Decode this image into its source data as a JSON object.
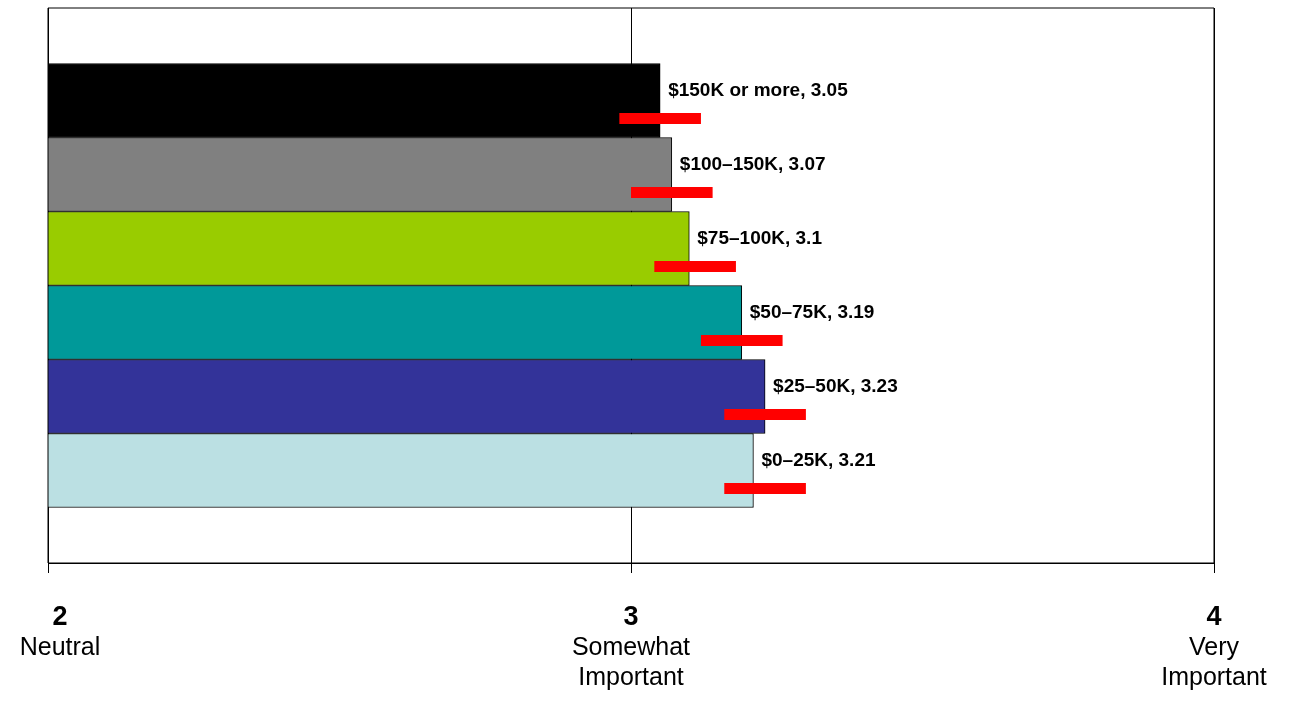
{
  "chart_data": {
    "type": "bar",
    "orientation": "horizontal",
    "categories": [
      "$150K or more",
      "$100–150K",
      "$75–100K",
      "$50–75K",
      "$25–50K",
      "$0–25K"
    ],
    "values": [
      3.05,
      3.07,
      3.1,
      3.19,
      3.23,
      3.21
    ],
    "colors": [
      "#000000",
      "#808080",
      "#99cc00",
      "#009999",
      "#333399",
      "#bbe0e3"
    ],
    "errors": [
      [
        2.98,
        3.12
      ],
      [
        3.0,
        3.14
      ],
      [
        3.04,
        3.18
      ],
      [
        3.12,
        3.26
      ],
      [
        3.16,
        3.3
      ],
      [
        3.16,
        3.3
      ]
    ],
    "xlim": [
      2,
      4
    ],
    "xticks": [
      {
        "value": 2,
        "label": "2\nNeutral"
      },
      {
        "value": 3,
        "label": "3\nSomewhat\nImportant"
      },
      {
        "value": 4,
        "label": "4\nVery\nImportant"
      }
    ],
    "value_labels": [
      ", 3.05",
      ", 3.07",
      ", 3.1",
      ", 3.19",
      ", 3.23",
      ", 3.21"
    ],
    "grid": "x",
    "legend": false
  }
}
